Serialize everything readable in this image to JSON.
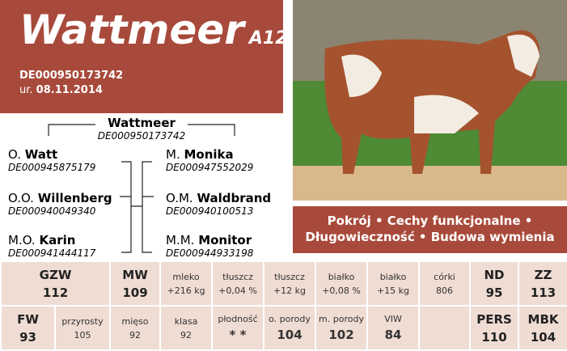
{
  "header": {
    "name": "Wattmeer",
    "code": "A12",
    "id": "DE000950173742",
    "birth_label": "ur.",
    "birth_date": "08.11.2014"
  },
  "pedigree": {
    "name": "Wattmeer",
    "id": "DE000950173742",
    "ancestors": [
      {
        "relation": "O.",
        "name": "Watt",
        "id": "DE000945875179"
      },
      {
        "relation": "O.O.",
        "name": "Willenberg",
        "id": "DE000940049340"
      },
      {
        "relation": "M.O.",
        "name": "Karin",
        "id": "DE000941444117"
      },
      {
        "relation": "M.",
        "name": "Monika",
        "id": "DE000947552029"
      },
      {
        "relation": "O.M.",
        "name": "Waldbrand",
        "id": "DE000940100513"
      },
      {
        "relation": "M.M.",
        "name": "Monitor",
        "id": "DE000944933198"
      }
    ]
  },
  "banner": {
    "lines": [
      "Pokrój • Cechy funkcjonalne •",
      "Długowieczność • Budowa wymienia"
    ]
  },
  "table": {
    "rows": [
      [
        {
          "label": "GZW",
          "value": "112"
        },
        {
          "label": "MW",
          "value": "109"
        },
        {
          "label": "mleko",
          "value": "+216 kg"
        },
        {
          "label": "tłuszcz",
          "value": "+0,04 %"
        },
        {
          "label": "tłuszcz",
          "value": "+12 kg"
        },
        {
          "label": "białko",
          "value": "+0,08 %"
        },
        {
          "label": "białko",
          "value": "+15 kg"
        },
        {
          "label": "córki",
          "value": "806"
        },
        {
          "label": "ND",
          "value": "95"
        },
        {
          "label": "ZZ",
          "value": "113"
        }
      ],
      [
        {
          "label": "FW",
          "value": "93"
        },
        {
          "label": "przyrosty",
          "value": "105"
        },
        {
          "label": "mięso",
          "value": "92"
        },
        {
          "label": "klasa",
          "value": "92"
        },
        {
          "label": "płodność",
          "value": "* *"
        },
        {
          "label": "o. porody",
          "value": "104"
        },
        {
          "label": "m. porody",
          "value": "102"
        },
        {
          "label": "VIW",
          "value": "84"
        },
        {
          "label": "PERS",
          "value": "110"
        },
        {
          "label": "MBK",
          "value": "104"
        }
      ]
    ]
  }
}
